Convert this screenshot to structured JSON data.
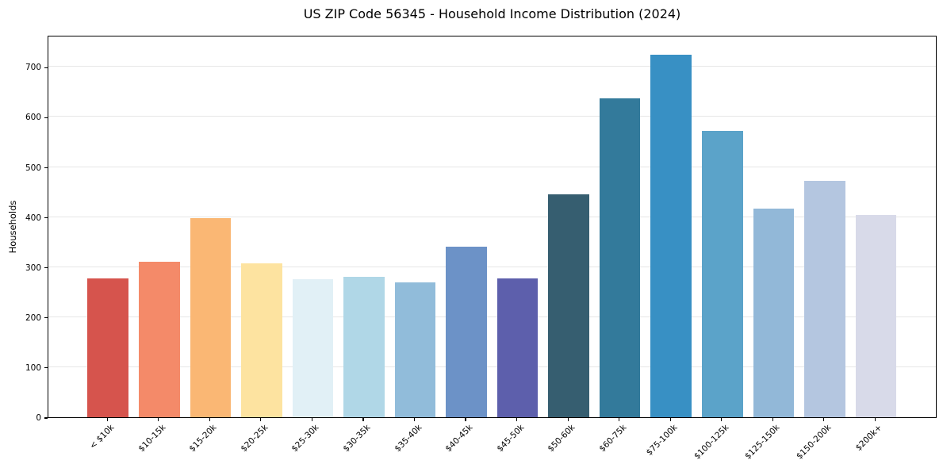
{
  "chart_data": {
    "type": "bar",
    "title": "US ZIP Code 56345 - Household Income Distribution (2024)",
    "xlabel": "",
    "ylabel": "Households",
    "categories": [
      "< $10k",
      "$10-15k",
      "$15-20k",
      "$20-25k",
      "$25-30k",
      "$30-35k",
      "$35-40k",
      "$40-45k",
      "$45-50k",
      "$50-60k",
      "$60-75k",
      "$75-100k",
      "$100-125k",
      "$125-150k",
      "$150-200k",
      "$200k+"
    ],
    "values": [
      277,
      310,
      398,
      307,
      276,
      281,
      270,
      341,
      278,
      445,
      637,
      725,
      572,
      417,
      472,
      405
    ],
    "bar_colors": [
      "#d6544d",
      "#f48a69",
      "#fab774",
      "#fde3a0",
      "#e1f0f6",
      "#b0d7e7",
      "#91bcda",
      "#6c92c7",
      "#5d5fac",
      "#365e70",
      "#337a9b",
      "#3890c4",
      "#5ba3c9",
      "#92b8d8",
      "#b4c6e0",
      "#d8dae9"
    ],
    "yticks": [
      0,
      100,
      200,
      300,
      400,
      500,
      600,
      700
    ],
    "ylim": [
      0,
      764
    ],
    "grid": "horizontal-only",
    "gridline_color": "#e6e6e6",
    "legend_position": "none",
    "x_tick_rotation": 45
  }
}
